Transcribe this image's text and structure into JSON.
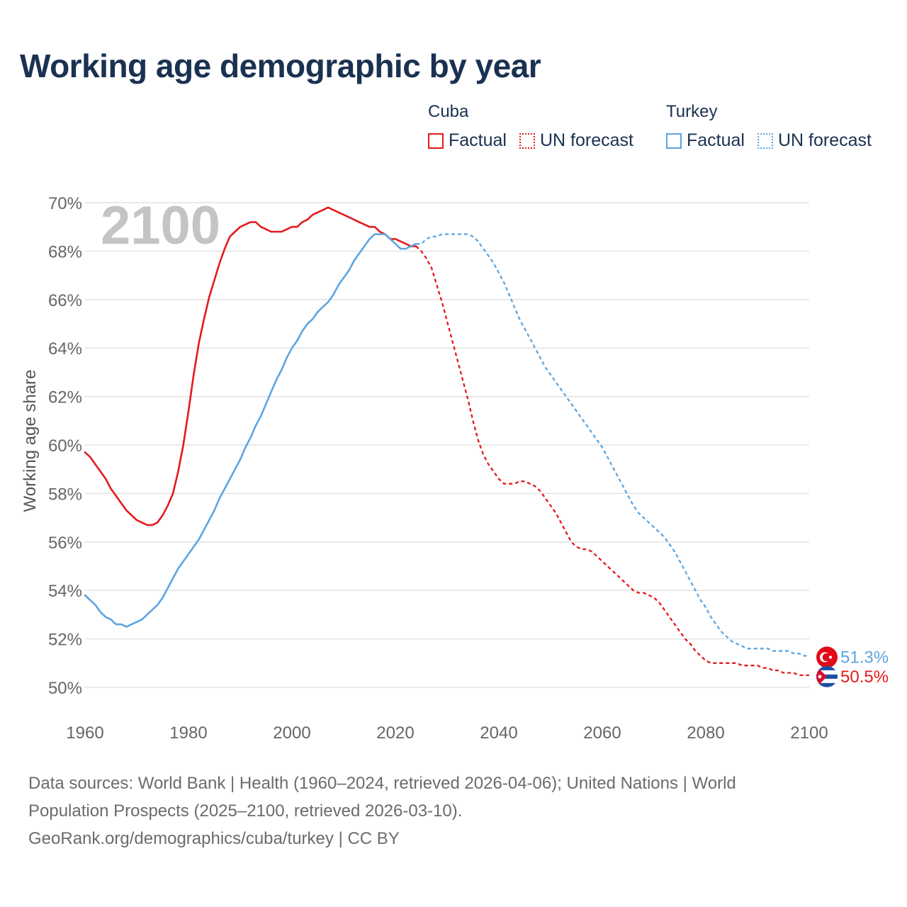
{
  "title": "Working age demographic by year",
  "legend": {
    "groups": [
      {
        "name": "Cuba",
        "color": "#e41a1c",
        "factual_label": "Factual",
        "forecast_label": "UN forecast"
      },
      {
        "name": "Turkey",
        "color": "#5da5e0",
        "factual_label": "Factual",
        "forecast_label": "UN forecast"
      }
    ]
  },
  "year_label": "2100",
  "end_labels": {
    "turkey": "51.3%",
    "cuba": "50.5%"
  },
  "footer": {
    "line1": "Data sources: World Bank | Health (1960–2024, retrieved 2026-04-06); United Nations | World",
    "line2": "Population Prospects (2025–2100, retrieved 2026-03-10).",
    "line3": "GeoRank.org/demographics/cuba/turkey | CC BY"
  },
  "chart_data": {
    "type": "line",
    "title": "Working age demographic by year",
    "ylabel": "Working age share",
    "xlabel": "",
    "xlim": [
      1960,
      2100
    ],
    "ylim": [
      50,
      70
    ],
    "x_ticks": [
      1960,
      1980,
      2000,
      2020,
      2040,
      2060,
      2080,
      2100
    ],
    "y_ticks": [
      50,
      52,
      54,
      56,
      58,
      60,
      62,
      64,
      66,
      68,
      70
    ],
    "y_tick_suffix": "%",
    "grid": true,
    "factual_end_year": 2024,
    "series": [
      {
        "name": "Cuba",
        "color": "#e41a1c",
        "points": [
          [
            1960,
            59.7
          ],
          [
            1961,
            59.5
          ],
          [
            1962,
            59.2
          ],
          [
            1963,
            58.9
          ],
          [
            1964,
            58.6
          ],
          [
            1965,
            58.2
          ],
          [
            1966,
            57.9
          ],
          [
            1967,
            57.6
          ],
          [
            1968,
            57.3
          ],
          [
            1969,
            57.1
          ],
          [
            1970,
            56.9
          ],
          [
            1971,
            56.8
          ],
          [
            1972,
            56.7
          ],
          [
            1973,
            56.7
          ],
          [
            1974,
            56.8
          ],
          [
            1975,
            57.1
          ],
          [
            1976,
            57.5
          ],
          [
            1977,
            58.0
          ],
          [
            1978,
            58.9
          ],
          [
            1979,
            60.0
          ],
          [
            1980,
            61.4
          ],
          [
            1981,
            62.9
          ],
          [
            1982,
            64.2
          ],
          [
            1983,
            65.2
          ],
          [
            1984,
            66.1
          ],
          [
            1985,
            66.8
          ],
          [
            1986,
            67.5
          ],
          [
            1987,
            68.1
          ],
          [
            1988,
            68.6
          ],
          [
            1989,
            68.8
          ],
          [
            1990,
            69.0
          ],
          [
            1991,
            69.1
          ],
          [
            1992,
            69.2
          ],
          [
            1993,
            69.2
          ],
          [
            1994,
            69.0
          ],
          [
            1995,
            68.9
          ],
          [
            1996,
            68.8
          ],
          [
            1997,
            68.8
          ],
          [
            1998,
            68.8
          ],
          [
            1999,
            68.9
          ],
          [
            2000,
            69.0
          ],
          [
            2001,
            69.0
          ],
          [
            2002,
            69.2
          ],
          [
            2003,
            69.3
          ],
          [
            2004,
            69.5
          ],
          [
            2005,
            69.6
          ],
          [
            2006,
            69.7
          ],
          [
            2007,
            69.8
          ],
          [
            2008,
            69.7
          ],
          [
            2009,
            69.6
          ],
          [
            2010,
            69.5
          ],
          [
            2011,
            69.4
          ],
          [
            2012,
            69.3
          ],
          [
            2013,
            69.2
          ],
          [
            2014,
            69.1
          ],
          [
            2015,
            69.0
          ],
          [
            2016,
            69.0
          ],
          [
            2017,
            68.8
          ],
          [
            2018,
            68.7
          ],
          [
            2019,
            68.5
          ],
          [
            2020,
            68.5
          ],
          [
            2021,
            68.4
          ],
          [
            2022,
            68.3
          ],
          [
            2023,
            68.2
          ],
          [
            2024,
            68.2
          ],
          [
            2025,
            68.0
          ],
          [
            2026,
            67.7
          ],
          [
            2027,
            67.3
          ],
          [
            2028,
            66.6
          ],
          [
            2029,
            65.9
          ],
          [
            2030,
            65.1
          ],
          [
            2031,
            64.3
          ],
          [
            2032,
            63.5
          ],
          [
            2033,
            62.7
          ],
          [
            2034,
            61.9
          ],
          [
            2035,
            61.0
          ],
          [
            2036,
            60.2
          ],
          [
            2037,
            59.6
          ],
          [
            2038,
            59.2
          ],
          [
            2039,
            58.9
          ],
          [
            2040,
            58.6
          ],
          [
            2041,
            58.4
          ],
          [
            2042,
            58.4
          ],
          [
            2043,
            58.4
          ],
          [
            2044,
            58.5
          ],
          [
            2045,
            58.5
          ],
          [
            2046,
            58.4
          ],
          [
            2047,
            58.3
          ],
          [
            2048,
            58.1
          ],
          [
            2049,
            57.8
          ],
          [
            2050,
            57.5
          ],
          [
            2051,
            57.2
          ],
          [
            2052,
            56.8
          ],
          [
            2053,
            56.4
          ],
          [
            2054,
            56.0
          ],
          [
            2055,
            55.8
          ],
          [
            2056,
            55.7
          ],
          [
            2057,
            55.7
          ],
          [
            2058,
            55.6
          ],
          [
            2059,
            55.4
          ],
          [
            2060,
            55.2
          ],
          [
            2061,
            55.0
          ],
          [
            2062,
            54.8
          ],
          [
            2063,
            54.6
          ],
          [
            2064,
            54.4
          ],
          [
            2065,
            54.2
          ],
          [
            2066,
            54.0
          ],
          [
            2067,
            53.9
          ],
          [
            2068,
            53.9
          ],
          [
            2069,
            53.8
          ],
          [
            2070,
            53.7
          ],
          [
            2071,
            53.5
          ],
          [
            2072,
            53.2
          ],
          [
            2073,
            52.9
          ],
          [
            2074,
            52.6
          ],
          [
            2075,
            52.3
          ],
          [
            2076,
            52.0
          ],
          [
            2077,
            51.8
          ],
          [
            2078,
            51.5
          ],
          [
            2079,
            51.3
          ],
          [
            2080,
            51.1
          ],
          [
            2081,
            51.0
          ],
          [
            2082,
            51.0
          ],
          [
            2083,
            51.0
          ],
          [
            2084,
            51.0
          ],
          [
            2085,
            51.0
          ],
          [
            2086,
            51.0
          ],
          [
            2087,
            50.9
          ],
          [
            2088,
            50.9
          ],
          [
            2089,
            50.9
          ],
          [
            2090,
            50.9
          ],
          [
            2091,
            50.8
          ],
          [
            2092,
            50.8
          ],
          [
            2093,
            50.7
          ],
          [
            2094,
            50.7
          ],
          [
            2095,
            50.6
          ],
          [
            2096,
            50.6
          ],
          [
            2097,
            50.6
          ],
          [
            2098,
            50.5
          ],
          [
            2099,
            50.5
          ],
          [
            2100,
            50.5
          ]
        ]
      },
      {
        "name": "Turkey",
        "color": "#5da5e0",
        "points": [
          [
            1960,
            53.8
          ],
          [
            1961,
            53.6
          ],
          [
            1962,
            53.4
          ],
          [
            1963,
            53.1
          ],
          [
            1964,
            52.9
          ],
          [
            1965,
            52.8
          ],
          [
            1966,
            52.6
          ],
          [
            1967,
            52.6
          ],
          [
            1968,
            52.5
          ],
          [
            1969,
            52.6
          ],
          [
            1970,
            52.7
          ],
          [
            1971,
            52.8
          ],
          [
            1972,
            53.0
          ],
          [
            1973,
            53.2
          ],
          [
            1974,
            53.4
          ],
          [
            1975,
            53.7
          ],
          [
            1976,
            54.1
          ],
          [
            1977,
            54.5
          ],
          [
            1978,
            54.9
          ],
          [
            1979,
            55.2
          ],
          [
            1980,
            55.5
          ],
          [
            1981,
            55.8
          ],
          [
            1982,
            56.1
          ],
          [
            1983,
            56.5
          ],
          [
            1984,
            56.9
          ],
          [
            1985,
            57.3
          ],
          [
            1986,
            57.8
          ],
          [
            1987,
            58.2
          ],
          [
            1988,
            58.6
          ],
          [
            1989,
            59.0
          ],
          [
            1990,
            59.4
          ],
          [
            1991,
            59.9
          ],
          [
            1992,
            60.3
          ],
          [
            1993,
            60.8
          ],
          [
            1994,
            61.2
          ],
          [
            1995,
            61.7
          ],
          [
            1996,
            62.2
          ],
          [
            1997,
            62.7
          ],
          [
            1998,
            63.1
          ],
          [
            1999,
            63.6
          ],
          [
            2000,
            64.0
          ],
          [
            2001,
            64.3
          ],
          [
            2002,
            64.7
          ],
          [
            2003,
            65.0
          ],
          [
            2004,
            65.2
          ],
          [
            2005,
            65.5
          ],
          [
            2006,
            65.7
          ],
          [
            2007,
            65.9
          ],
          [
            2008,
            66.2
          ],
          [
            2009,
            66.6
          ],
          [
            2010,
            66.9
          ],
          [
            2011,
            67.2
          ],
          [
            2012,
            67.6
          ],
          [
            2013,
            67.9
          ],
          [
            2014,
            68.2
          ],
          [
            2015,
            68.5
          ],
          [
            2016,
            68.7
          ],
          [
            2017,
            68.7
          ],
          [
            2018,
            68.7
          ],
          [
            2019,
            68.5
          ],
          [
            2020,
            68.3
          ],
          [
            2021,
            68.1
          ],
          [
            2022,
            68.1
          ],
          [
            2023,
            68.2
          ],
          [
            2024,
            68.3
          ],
          [
            2025,
            68.3
          ],
          [
            2026,
            68.5
          ],
          [
            2027,
            68.6
          ],
          [
            2028,
            68.6
          ],
          [
            2029,
            68.7
          ],
          [
            2030,
            68.7
          ],
          [
            2031,
            68.7
          ],
          [
            2032,
            68.7
          ],
          [
            2033,
            68.7
          ],
          [
            2034,
            68.7
          ],
          [
            2035,
            68.6
          ],
          [
            2036,
            68.4
          ],
          [
            2037,
            68.1
          ],
          [
            2038,
            67.8
          ],
          [
            2039,
            67.5
          ],
          [
            2040,
            67.1
          ],
          [
            2041,
            66.7
          ],
          [
            2042,
            66.2
          ],
          [
            2043,
            65.7
          ],
          [
            2044,
            65.2
          ],
          [
            2045,
            64.8
          ],
          [
            2046,
            64.4
          ],
          [
            2047,
            64.0
          ],
          [
            2048,
            63.6
          ],
          [
            2049,
            63.2
          ],
          [
            2050,
            62.9
          ],
          [
            2051,
            62.6
          ],
          [
            2052,
            62.3
          ],
          [
            2053,
            62.0
          ],
          [
            2054,
            61.7
          ],
          [
            2055,
            61.4
          ],
          [
            2056,
            61.1
          ],
          [
            2057,
            60.8
          ],
          [
            2058,
            60.5
          ],
          [
            2059,
            60.2
          ],
          [
            2060,
            59.9
          ],
          [
            2061,
            59.5
          ],
          [
            2062,
            59.1
          ],
          [
            2063,
            58.7
          ],
          [
            2064,
            58.3
          ],
          [
            2065,
            57.9
          ],
          [
            2066,
            57.5
          ],
          [
            2067,
            57.2
          ],
          [
            2068,
            57.0
          ],
          [
            2069,
            56.8
          ],
          [
            2070,
            56.6
          ],
          [
            2071,
            56.4
          ],
          [
            2072,
            56.2
          ],
          [
            2073,
            55.9
          ],
          [
            2074,
            55.6
          ],
          [
            2075,
            55.2
          ],
          [
            2076,
            54.8
          ],
          [
            2077,
            54.4
          ],
          [
            2078,
            54.0
          ],
          [
            2079,
            53.6
          ],
          [
            2080,
            53.3
          ],
          [
            2081,
            52.9
          ],
          [
            2082,
            52.6
          ],
          [
            2083,
            52.3
          ],
          [
            2084,
            52.1
          ],
          [
            2085,
            51.9
          ],
          [
            2086,
            51.8
          ],
          [
            2087,
            51.7
          ],
          [
            2088,
            51.6
          ],
          [
            2089,
            51.6
          ],
          [
            2090,
            51.6
          ],
          [
            2091,
            51.6
          ],
          [
            2092,
            51.6
          ],
          [
            2093,
            51.5
          ],
          [
            2094,
            51.5
          ],
          [
            2095,
            51.5
          ],
          [
            2096,
            51.5
          ],
          [
            2097,
            51.4
          ],
          [
            2098,
            51.4
          ],
          [
            2099,
            51.3
          ],
          [
            2100,
            51.3
          ]
        ]
      }
    ]
  }
}
